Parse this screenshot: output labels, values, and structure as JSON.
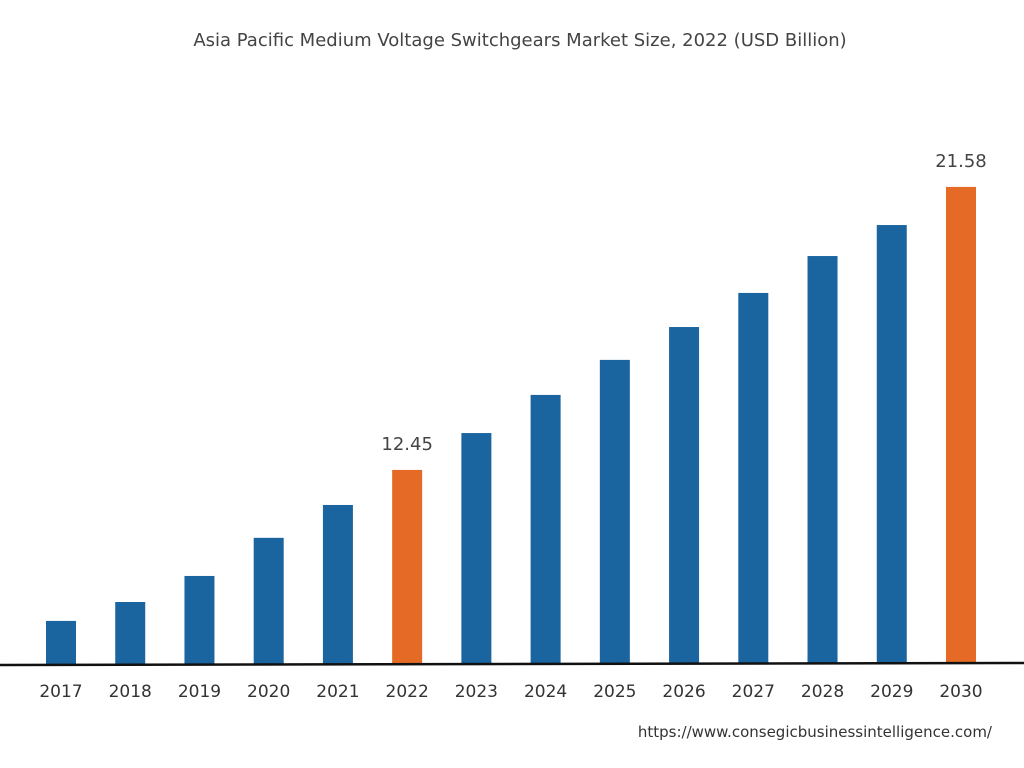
{
  "chart_data": {
    "type": "bar",
    "title": "Asia Pacific Medium Voltage Switchgears Market Size, 2022 (USD Billion)",
    "xlabel": "",
    "ylabel": "",
    "categories": [
      "2017",
      "2018",
      "2019",
      "2020",
      "2021",
      "2022",
      "2023",
      "2024",
      "2025",
      "2026",
      "2027",
      "2028",
      "2029",
      "2030"
    ],
    "values": [
      7.58,
      8.19,
      9.03,
      10.26,
      11.32,
      12.45,
      13.64,
      14.87,
      16.0,
      17.06,
      18.16,
      19.35,
      20.35,
      21.58
    ],
    "data_labels": {
      "2022": "12.45",
      "2030": "21.58"
    },
    "highlight": [
      "2022",
      "2030"
    ],
    "colors": {
      "default": "#1a64a0",
      "highlight": "#e46a26"
    },
    "grid": false,
    "legend": "none",
    "yaxis_visible": false
  },
  "source_url": "https://www.consegicbusinessintelligence.com/"
}
